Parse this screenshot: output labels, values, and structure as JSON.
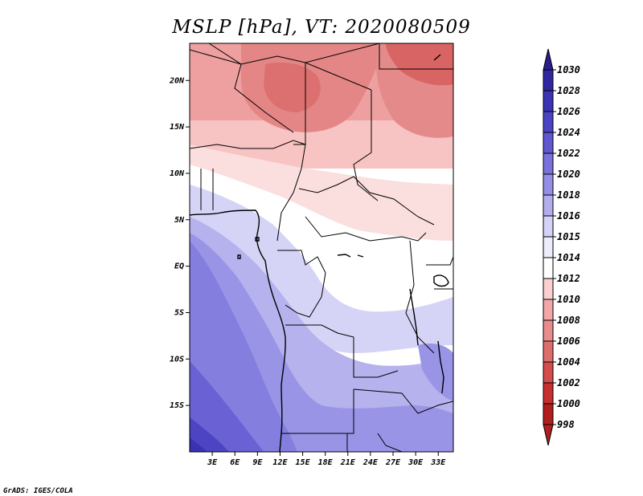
{
  "title": "MSLP [hPa], VT: 2020080509",
  "credit": "GrADS: IGES/COLA",
  "map": {
    "lon_range": [
      0,
      35
    ],
    "lat_range": [
      -20,
      24
    ],
    "lat_ticks": [
      {
        "value": 20,
        "label": "20N"
      },
      {
        "value": 15,
        "label": "15N"
      },
      {
        "value": 10,
        "label": "10N"
      },
      {
        "value": 5,
        "label": "5N"
      },
      {
        "value": 0,
        "label": "EQ"
      },
      {
        "value": -5,
        "label": "5S"
      },
      {
        "value": -10,
        "label": "10S"
      },
      {
        "value": -15,
        "label": "15S"
      }
    ],
    "lon_ticks": [
      {
        "value": 3,
        "label": "3E"
      },
      {
        "value": 6,
        "label": "6E"
      },
      {
        "value": 9,
        "label": "9E"
      },
      {
        "value": 12,
        "label": "12E"
      },
      {
        "value": 15,
        "label": "15E"
      },
      {
        "value": 18,
        "label": "18E"
      },
      {
        "value": 21,
        "label": "21E"
      },
      {
        "value": 24,
        "label": "24E"
      },
      {
        "value": 27,
        "label": "27E"
      },
      {
        "value": 30,
        "label": "30E"
      },
      {
        "value": 33,
        "label": "33E"
      }
    ]
  },
  "colorbar": {
    "levels": [
      {
        "label": "1030",
        "color": "#2a1e8c"
      },
      {
        "label": "1028",
        "color": "#3026a0"
      },
      {
        "label": "1026",
        "color": "#3a33b4"
      },
      {
        "label": "1024",
        "color": "#4a44c4"
      },
      {
        "label": "1022",
        "color": "#6058d2"
      },
      {
        "label": "1020",
        "color": "#7a72dc"
      },
      {
        "label": "1018",
        "color": "#958ee6"
      },
      {
        "label": "1016",
        "color": "#b2aeee"
      },
      {
        "label": "1015",
        "color": "#d4d2f6"
      },
      {
        "label": "1014",
        "color": "#ececfc"
      },
      {
        "label": "1012",
        "color": "#ffffff"
      },
      {
        "label": "1010",
        "color": "#fad0d0"
      },
      {
        "label": "1008",
        "color": "#f2a8a8"
      },
      {
        "label": "1006",
        "color": "#e88c8c"
      },
      {
        "label": "1004",
        "color": "#de6e6e"
      },
      {
        "label": "1002",
        "color": "#d44c4c"
      },
      {
        "label": "1000",
        "color": "#c83030"
      },
      {
        "label": "998",
        "color": "#b01e1e"
      }
    ]
  }
}
